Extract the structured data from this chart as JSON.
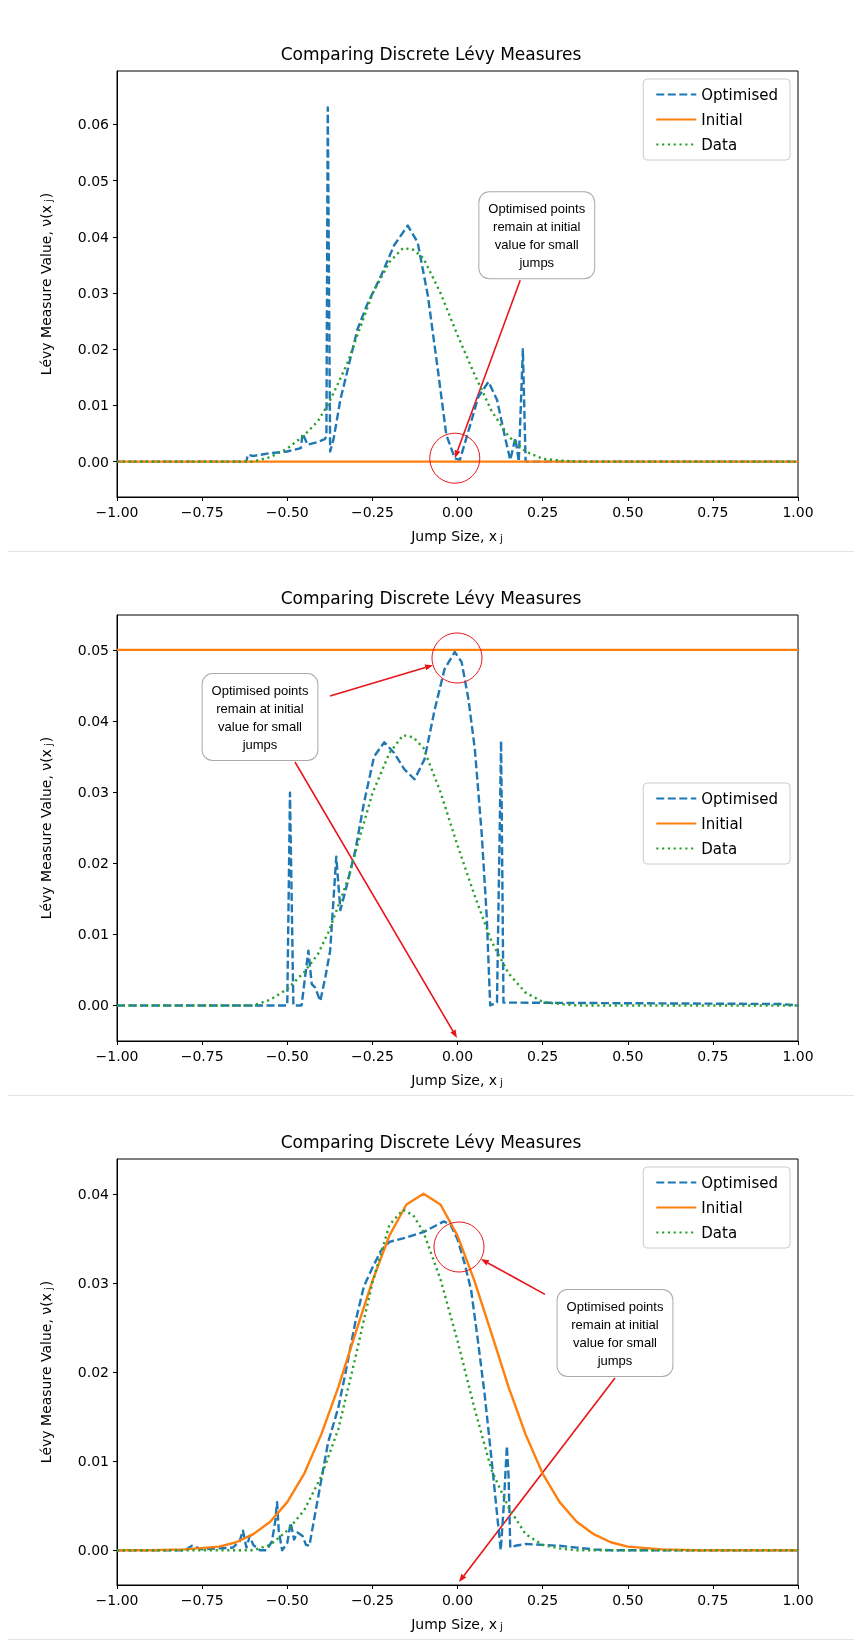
{
  "chart_data": [
    {
      "type": "line",
      "title": "Comparing Discrete Lévy Measures",
      "xlabel": "Jump Size, x$_{j}$",
      "ylabel": "Lévy Measure Value, ν(x$_{j}$)",
      "xlim": [
        -1,
        1
      ],
      "ylim": [
        -0.0063,
        0.0695
      ],
      "xticks": [
        {
          "value": -1,
          "label": "−1.00"
        },
        {
          "value": -0.75,
          "label": "−0.75"
        },
        {
          "value": -0.5,
          "label": "−0.50"
        },
        {
          "value": -0.25,
          "label": "−0.25"
        },
        {
          "value": 0,
          "label": "0.00"
        },
        {
          "value": 0.25,
          "label": "0.25"
        },
        {
          "value": 0.5,
          "label": "0.50"
        },
        {
          "value": 0.75,
          "label": "0.75"
        },
        {
          "value": 1,
          "label": "1.00"
        }
      ],
      "yticks": [
        {
          "value": 0,
          "label": "0.00"
        },
        {
          "value": 0.01,
          "label": "0.01"
        },
        {
          "value": 0.02,
          "label": "0.02"
        },
        {
          "value": 0.03,
          "label": "0.03"
        },
        {
          "value": 0.04,
          "label": "0.04"
        },
        {
          "value": 0.05,
          "label": "0.05"
        },
        {
          "value": 0.06,
          "label": "0.06"
        }
      ],
      "grid": false,
      "legend": "top right",
      "marker": "none",
      "series": [
        {
          "name": "Optimised",
          "color": "#1f77b4",
          "line_style": "dashed",
          "x": [
            -1,
            -0.62,
            -0.616,
            -0.6,
            -0.55,
            -0.5,
            -0.46,
            -0.455,
            -0.44,
            -0.41,
            -0.39,
            -0.385,
            -0.381,
            -0.374,
            -0.364,
            -0.344,
            -0.324,
            -0.294,
            -0.265,
            -0.225,
            -0.186,
            -0.146,
            -0.117,
            -0.087,
            -0.057,
            -0.033,
            -0.008,
            0.007,
            0.032,
            0.061,
            0.091,
            0.116,
            0.14,
            0.155,
            0.17,
            0.18,
            0.192,
            0.2,
            1
          ],
          "values": [
            0,
            0,
            0.0012,
            0.001,
            0.0015,
            0.0018,
            0.0024,
            0.005,
            0.003,
            0.0035,
            0.004,
            0.0045,
            0.063,
            0.0018,
            0.004,
            0.011,
            0.016,
            0.0235,
            0.028,
            0.033,
            0.0385,
            0.042,
            0.039,
            0.0295,
            0.016,
            0.0048,
            0.0006,
            0.0003,
            0.0054,
            0.0115,
            0.0142,
            0.011,
            0.0042,
            0.0003,
            0.0042,
            0,
            0.02,
            0,
            0
          ]
        },
        {
          "name": "Initial",
          "color": "#ff7f0e",
          "line_style": "solid",
          "x": [
            -1,
            1
          ],
          "values": [
            0,
            0
          ]
        },
        {
          "name": "Data",
          "color": "#2ca02c",
          "line_style": "dotted",
          "x": [
            -1,
            -0.6,
            -0.55,
            -0.5,
            -0.45,
            -0.41,
            -0.38,
            -0.35,
            -0.32,
            -0.3,
            -0.25,
            -0.2,
            -0.16,
            -0.13,
            -0.1,
            -0.05,
            0,
            0.05,
            0.1,
            0.15,
            0.2,
            0.25,
            0.3,
            0.35,
            1
          ],
          "values": [
            0,
            0,
            0.0008,
            0.0023,
            0.0047,
            0.0072,
            0.0102,
            0.014,
            0.018,
            0.0215,
            0.0298,
            0.0355,
            0.038,
            0.0377,
            0.0362,
            0.03,
            0.0225,
            0.0155,
            0.009,
            0.0045,
            0.0018,
            0.0005,
            0.0002,
            0,
            0
          ]
        }
      ],
      "annotations": [
        {
          "text": "Optimised points\nremain at initial\nvalue for small\njumps",
          "x": -0.008,
          "y": 0.0006
        }
      ]
    },
    {
      "type": "line",
      "title": "Comparing Discrete Lévy Measures",
      "xlabel": "Jump Size, x$_{j}$",
      "ylabel": "Lévy Measure Value, ν(x$_{j}$)",
      "xlim": [
        -1,
        1
      ],
      "ylim": [
        -0.005,
        0.0549
      ],
      "xticks": [
        {
          "value": -1,
          "label": "−1.00"
        },
        {
          "value": -0.75,
          "label": "−0.75"
        },
        {
          "value": -0.5,
          "label": "−0.50"
        },
        {
          "value": -0.25,
          "label": "−0.25"
        },
        {
          "value": 0,
          "label": "0.00"
        },
        {
          "value": 0.25,
          "label": "0.25"
        },
        {
          "value": 0.5,
          "label": "0.50"
        },
        {
          "value": 0.75,
          "label": "0.75"
        },
        {
          "value": 1,
          "label": "1.00"
        }
      ],
      "yticks": [
        {
          "value": 0,
          "label": "0.00"
        },
        {
          "value": 0.01,
          "label": "0.01"
        },
        {
          "value": 0.02,
          "label": "0.02"
        },
        {
          "value": 0.03,
          "label": "0.03"
        },
        {
          "value": 0.04,
          "label": "0.04"
        },
        {
          "value": 0.05,
          "label": "0.05"
        }
      ],
      "grid": false,
      "legend": "right",
      "marker": "none",
      "series": [
        {
          "name": "Optimised",
          "color": "#1f77b4",
          "line_style": "dashed",
          "x": [
            -1,
            -0.522,
            -0.5,
            -0.492,
            -0.482,
            -0.458,
            -0.438,
            -0.428,
            -0.418,
            -0.403,
            -0.388,
            -0.374,
            -0.356,
            -0.344,
            -0.324,
            -0.3,
            -0.275,
            -0.245,
            -0.215,
            -0.186,
            -0.156,
            -0.126,
            -0.097,
            -0.067,
            -0.038,
            -0.008,
            0.012,
            0.032,
            0.051,
            0.071,
            0.086,
            0.096,
            0.116,
            0.128,
            0.135,
            0.15,
            0.95,
            1
          ],
          "values": [
            0,
            0,
            0,
            0.0299,
            0,
            0,
            0.0077,
            0.003,
            0.0025,
            0.0006,
            0.004,
            0.0077,
            0.0209,
            0.0134,
            0.0171,
            0.0218,
            0.0284,
            0.035,
            0.037,
            0.0355,
            0.0332,
            0.0318,
            0.0346,
            0.0416,
            0.0473,
            0.0497,
            0.0483,
            0.0431,
            0.036,
            0.0242,
            0.0124,
            0,
            0.0004,
            0.0372,
            0.0004,
            0.0004,
            0.0002,
            0
          ]
        },
        {
          "name": "Initial",
          "color": "#ff7f0e",
          "line_style": "solid",
          "x": [
            -1,
            1
          ],
          "values": [
            0.05,
            0.05
          ]
        },
        {
          "name": "Data",
          "color": "#2ca02c",
          "line_style": "dotted",
          "x": [
            -1,
            -0.6,
            -0.55,
            -0.5,
            -0.45,
            -0.41,
            -0.38,
            -0.35,
            -0.32,
            -0.3,
            -0.25,
            -0.2,
            -0.16,
            -0.13,
            -0.1,
            -0.05,
            0,
            0.05,
            0.1,
            0.15,
            0.2,
            0.25,
            0.3,
            0.35,
            1
          ],
          "values": [
            0,
            0,
            0.0008,
            0.0023,
            0.0047,
            0.0072,
            0.0102,
            0.014,
            0.018,
            0.0215,
            0.0298,
            0.0355,
            0.038,
            0.0377,
            0.0362,
            0.03,
            0.0225,
            0.0155,
            0.009,
            0.0045,
            0.0018,
            0.0005,
            0.0002,
            0,
            0
          ]
        }
      ],
      "annotations": [
        "Optimised points\nremain at initial\nvalue for small\njumps"
      ]
    },
    {
      "type": "line",
      "title": "Comparing Discrete Lévy Measures",
      "xlabel": "Jump Size, x$_{j}$",
      "ylabel": "Lévy Measure Value, ν(x$_{j}$)",
      "xlim": [
        -1,
        1
      ],
      "ylim": [
        -0.0039,
        0.0439
      ],
      "xticks": [
        {
          "value": -1,
          "label": "−1.00"
        },
        {
          "value": -0.75,
          "label": "−0.75"
        },
        {
          "value": -0.5,
          "label": "−0.50"
        },
        {
          "value": -0.25,
          "label": "−0.25"
        },
        {
          "value": 0,
          "label": "0.00"
        },
        {
          "value": 0.25,
          "label": "0.25"
        },
        {
          "value": 0.5,
          "label": "0.50"
        },
        {
          "value": 0.75,
          "label": "0.75"
        },
        {
          "value": 1,
          "label": "1.00"
        }
      ],
      "yticks": [
        {
          "value": 0,
          "label": "0.00"
        },
        {
          "value": 0.01,
          "label": "0.01"
        },
        {
          "value": 0.02,
          "label": "0.02"
        },
        {
          "value": 0.03,
          "label": "0.03"
        },
        {
          "value": 0.04,
          "label": "0.04"
        }
      ],
      "grid": false,
      "legend": "top right",
      "marker": "none",
      "series": [
        {
          "name": "Optimised",
          "color": "#1f77b4",
          "line_style": "dashed",
          "x": [
            -1,
            -0.8,
            -0.78,
            -0.75,
            -0.66,
            -0.64,
            -0.63,
            -0.62,
            -0.61,
            -0.6,
            -0.58,
            -0.56,
            -0.545,
            -0.535,
            -0.53,
            -0.525,
            -0.515,
            -0.5,
            -0.49,
            -0.48,
            -0.47,
            -0.455,
            -0.445,
            -0.435,
            -0.42,
            -0.4,
            -0.38,
            -0.35,
            -0.33,
            -0.3,
            -0.275,
            -0.25,
            -0.225,
            -0.2,
            -0.15,
            -0.1,
            -0.07,
            -0.04,
            -0.02,
            0,
            0.02,
            0.04,
            0.06,
            0.08,
            0.1,
            0.11,
            0.12,
            0.127,
            0.135,
            0.145,
            0.15,
            0.155,
            0.17,
            0.2,
            0.25,
            0.3,
            0.35,
            0.4,
            0.45,
            1
          ],
          "values": [
            0,
            0,
            0.0005,
            0.0001,
            0.0003,
            0.001,
            0.0022,
            0.0003,
            0.0016,
            0.0006,
            0,
            0,
            0.001,
            0.0033,
            0.0054,
            0.0022,
            0,
            0.0008,
            0.0031,
            0.0012,
            0.002,
            0.0016,
            0.0006,
            0.0005,
            0.0037,
            0.0079,
            0.0121,
            0.016,
            0.0197,
            0.0256,
            0.0296,
            0.0317,
            0.0336,
            0.0346,
            0.0351,
            0.0357,
            0.0363,
            0.0369,
            0.0365,
            0.0349,
            0.0323,
            0.0292,
            0.0235,
            0.0174,
            0.0102,
            0.0064,
            0.0026,
            0,
            0.0045,
            0.0117,
            0.0083,
            0.0003,
            0.0005,
            0.0007,
            0.0006,
            0.0005,
            0.0003,
            0.0001,
            0,
            0
          ]
        },
        {
          "name": "Initial",
          "color": "#ff7f0e",
          "line_style": "solid",
          "x": [
            -1,
            -0.9,
            -0.8,
            -0.7,
            -0.65,
            -0.6,
            -0.55,
            -0.5,
            -0.45,
            -0.4,
            -0.35,
            -0.3,
            -0.25,
            -0.2,
            -0.15,
            -0.1,
            -0.05,
            0,
            0.05,
            0.1,
            0.15,
            0.2,
            0.25,
            0.3,
            0.35,
            0.4,
            0.45,
            0.5,
            0.6,
            0.7,
            0.8,
            1
          ],
          "values": [
            0,
            0,
            0.0001,
            0.0004,
            0.0009,
            0.0018,
            0.0032,
            0.0054,
            0.0086,
            0.013,
            0.0183,
            0.0243,
            0.0302,
            0.0353,
            0.0388,
            0.04,
            0.0388,
            0.0353,
            0.0302,
            0.0243,
            0.0183,
            0.013,
            0.0086,
            0.0054,
            0.0032,
            0.0018,
            0.0009,
            0.0004,
            0.0001,
            0,
            0,
            0
          ]
        },
        {
          "name": "Data",
          "color": "#2ca02c",
          "line_style": "dotted",
          "x": [
            -1,
            -0.6,
            -0.55,
            -0.5,
            -0.45,
            -0.4,
            -0.35,
            -0.3,
            -0.25,
            -0.2,
            -0.16,
            -0.13,
            -0.1,
            -0.05,
            0,
            0.05,
            0.1,
            0.15,
            0.2,
            0.25,
            0.3,
            0.35,
            1
          ],
          "values": [
            0,
            0,
            0.0006,
            0.0022,
            0.0045,
            0.0083,
            0.0136,
            0.0216,
            0.03,
            0.0365,
            0.0382,
            0.0376,
            0.0357,
            0.0304,
            0.0235,
            0.0159,
            0.009,
            0.0048,
            0.0018,
            0.0006,
            0.0002,
            0,
            0
          ]
        }
      ],
      "annotations": [
        "Optimised points\nremain at initial\nvalue for small\njumps"
      ]
    }
  ]
}
